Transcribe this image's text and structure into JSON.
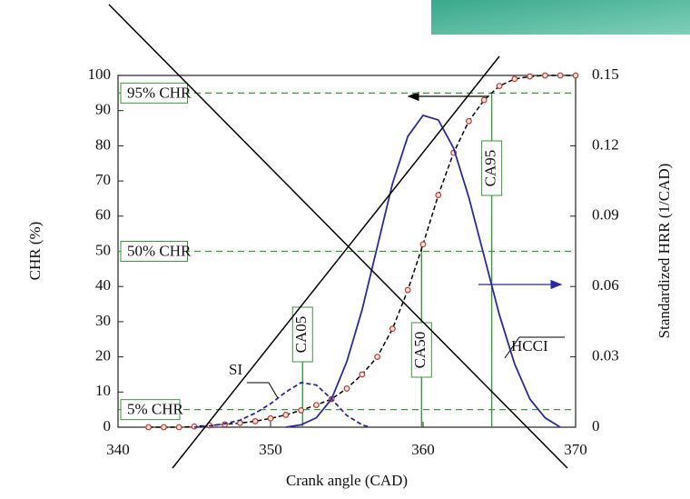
{
  "chart_data": {
    "type": "line",
    "x_label": "Crank angle (CAD)",
    "y_label": "CHR (%)",
    "y2_label": "Standardized HRR (1/CAD)",
    "xlim": [
      340,
      370
    ],
    "xticks": [
      340,
      350,
      360,
      370
    ],
    "ylim": [
      0,
      100
    ],
    "yticks": [
      0,
      10,
      20,
      30,
      40,
      50,
      60,
      70,
      80,
      90,
      100
    ],
    "y2lim": [
      0,
      0.15
    ],
    "y2ticks": [
      0,
      0.03,
      0.06,
      0.09,
      0.12,
      0.15
    ],
    "series": [
      {
        "color": "#c0392b",
        "line_color": "#000000",
        "axis": "y",
        "x": [
          342,
          343,
          344,
          345,
          346,
          347,
          348,
          349,
          350,
          351,
          352,
          353,
          354,
          355,
          356,
          357,
          358,
          359,
          360,
          361,
          362,
          363,
          364,
          365,
          366,
          367,
          368,
          369,
          370
        ],
        "values": [
          0,
          0,
          0,
          0.2,
          0.5,
          0.8,
          1.2,
          1.7,
          2.5,
          3.5,
          4.8,
          6.3,
          8,
          11,
          15,
          20,
          28,
          39,
          52,
          66,
          78,
          87,
          93,
          97,
          99,
          99.7,
          100,
          100,
          100
        ]
      },
      {
        "name": "HCCI",
        "color": "#2a2aa0",
        "axis": "y2",
        "x": [
          351,
          352,
          353,
          354,
          355,
          356,
          357,
          358,
          359,
          360,
          361,
          362,
          363,
          364,
          365,
          366,
          367,
          368,
          369
        ],
        "values": [
          0,
          0.001,
          0.004,
          0.012,
          0.028,
          0.05,
          0.077,
          0.104,
          0.124,
          0.133,
          0.131,
          0.119,
          0.098,
          0.073,
          0.048,
          0.027,
          0.012,
          0.004,
          0
        ]
      },
      {
        "name": "SI",
        "color": "#2a2aa0",
        "axis": "y2",
        "dashed": true,
        "x": [
          345,
          346,
          347,
          348,
          349,
          350,
          351,
          352,
          353,
          354,
          355,
          356,
          356.5
        ],
        "values": [
          0,
          0.0005,
          0.0015,
          0.003,
          0.006,
          0.01,
          0.015,
          0.019,
          0.018,
          0.012,
          0.005,
          0.001,
          0
        ]
      }
    ],
    "hlines": [
      {
        "label": "95% CHR",
        "y": 95
      },
      {
        "label": "50% CHR",
        "y": 50
      },
      {
        "label": "5% CHR",
        "y": 5
      }
    ],
    "vlines": [
      {
        "label": "CA05",
        "x": 352.1
      },
      {
        "label": "CA50",
        "x": 359.9
      },
      {
        "label": "CA95",
        "x": 364.5
      }
    ],
    "ref_color": "#3a9a3a"
  }
}
